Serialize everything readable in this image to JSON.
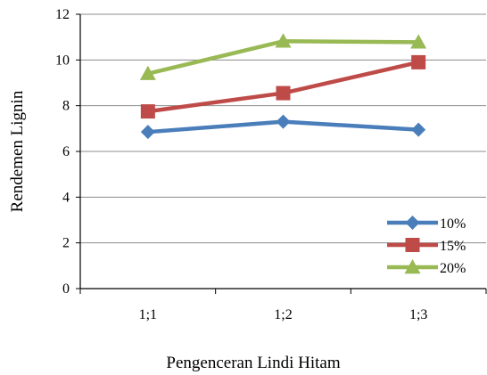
{
  "chart_data": {
    "type": "line",
    "categories": [
      "1;1",
      "1;2",
      "1;3"
    ],
    "series": [
      {
        "name": "10%",
        "values": [
          6.85,
          7.3,
          6.95
        ],
        "color": "#4a7ebb",
        "marker": "diamond"
      },
      {
        "name": "15%",
        "values": [
          7.75,
          8.55,
          9.9
        ],
        "color": "#be4b48",
        "marker": "square"
      },
      {
        "name": "20%",
        "values": [
          9.4,
          10.82,
          10.78
        ],
        "color": "#98b954",
        "marker": "triangle"
      }
    ],
    "title": "",
    "xlabel": "Pengenceran Lindi Hitam",
    "ylabel": "Rendemen Lignin",
    "ylim": [
      0,
      12
    ],
    "yticks": [
      "0",
      "2",
      "4",
      "6",
      "8",
      "10",
      "12"
    ],
    "grid": "horizontal",
    "legend_position": "bottom-right"
  }
}
